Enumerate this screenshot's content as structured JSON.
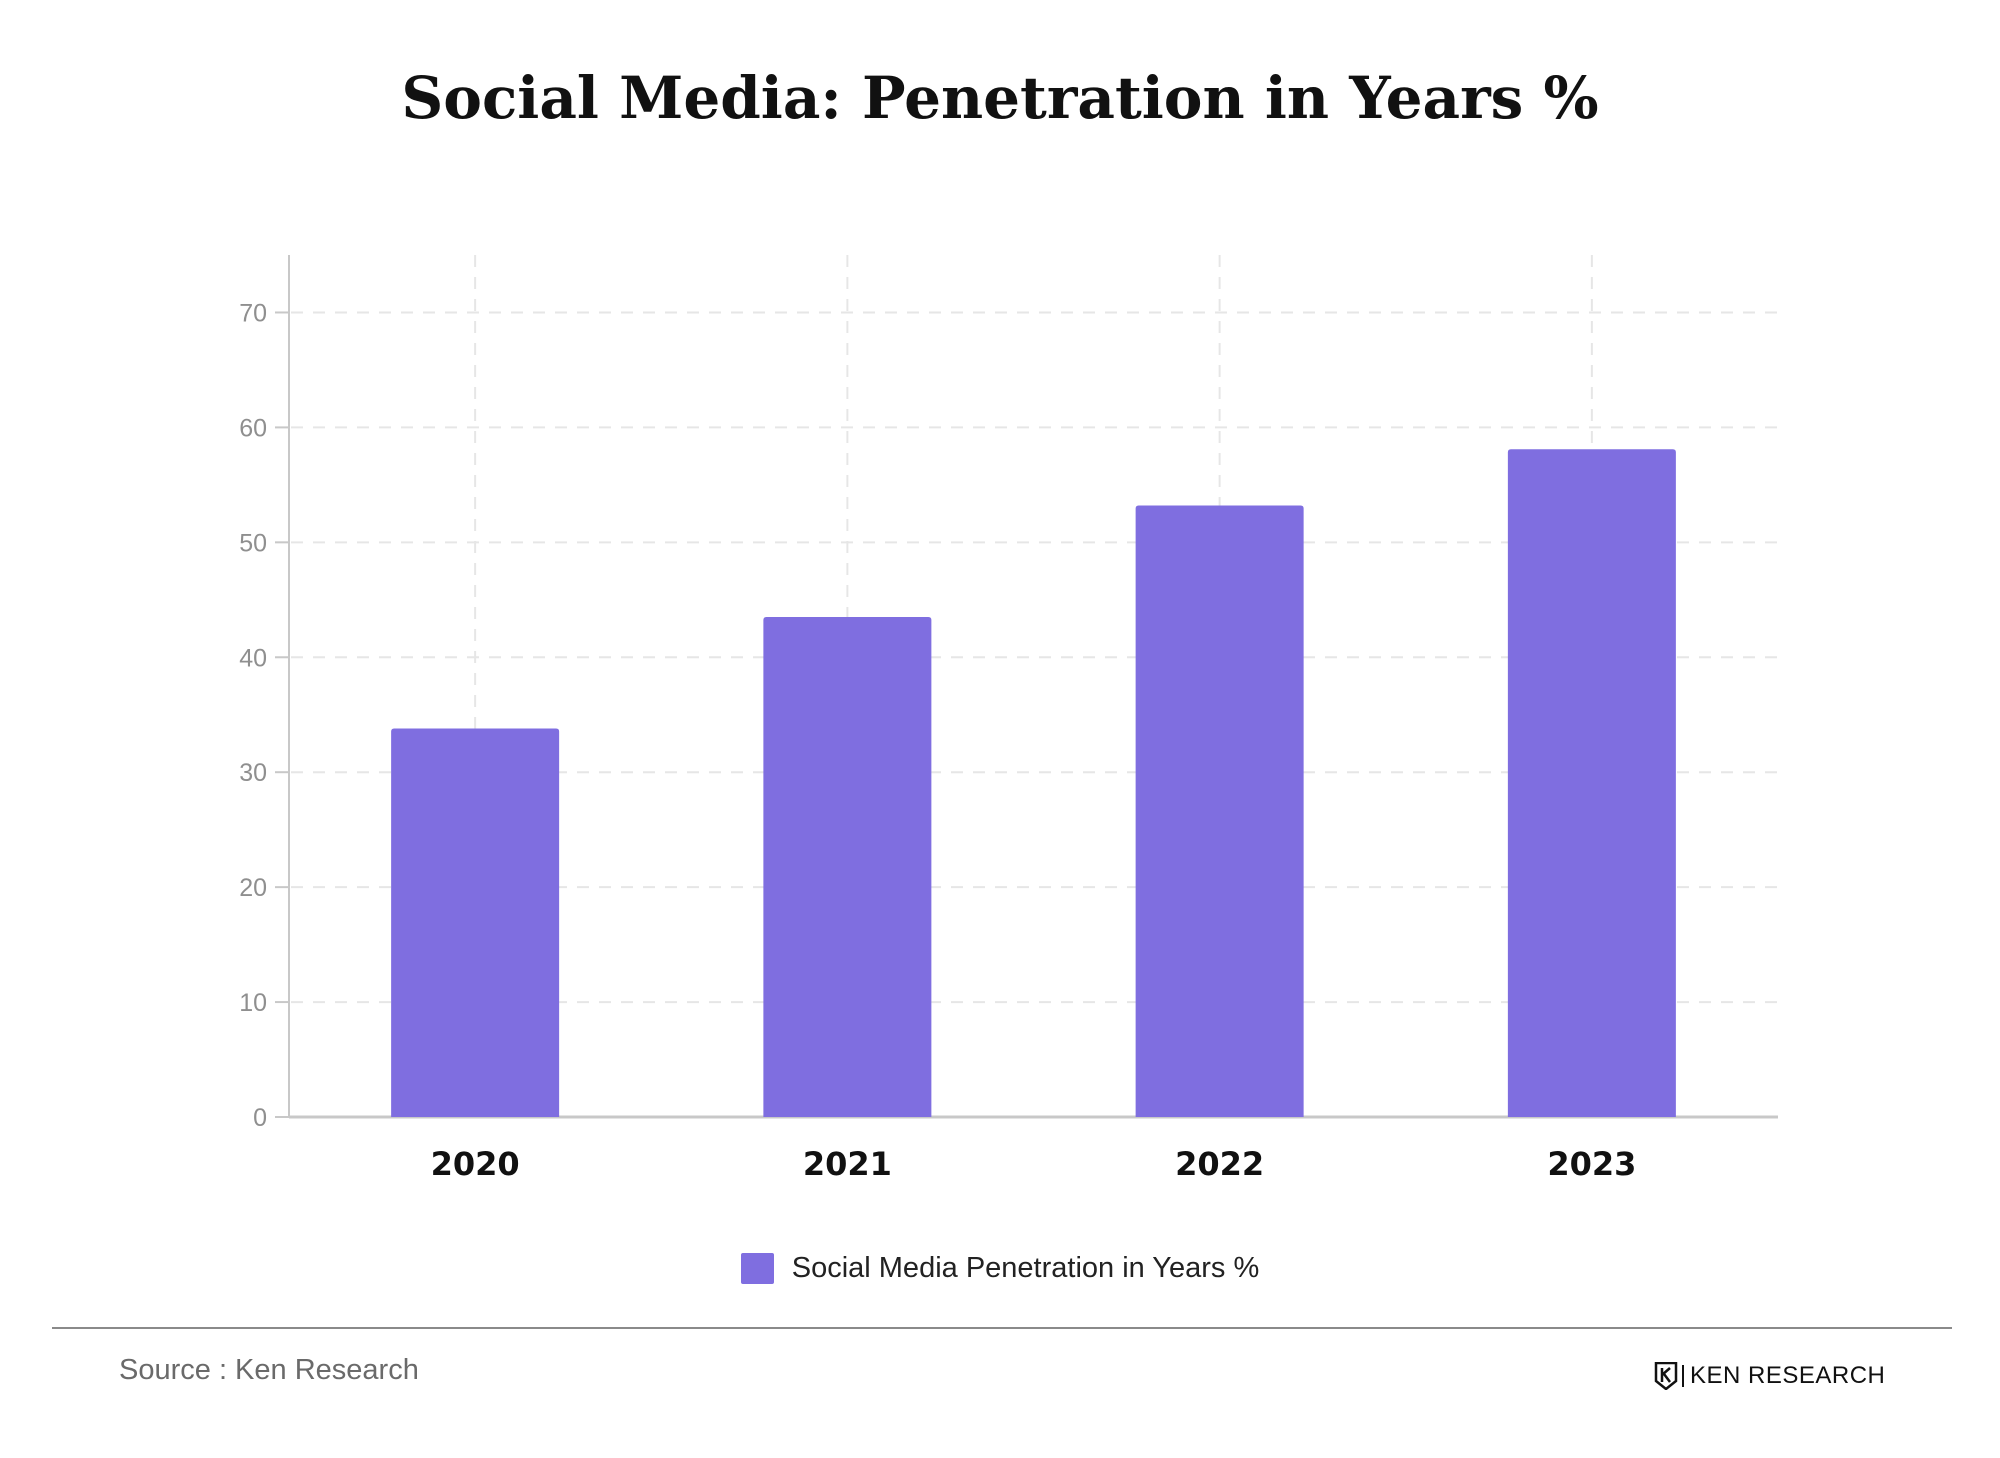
{
  "title": "Social Media: Penetration in Years %",
  "colors": {
    "bar": "#7f6ee0",
    "axis": "#c8c8c8",
    "grid": "#e6e6e6"
  },
  "chart_data": {
    "type": "bar",
    "title": "Social Media: Penetration in Years %",
    "categories": [
      "2020",
      "2021",
      "2022",
      "2023"
    ],
    "series": [
      {
        "name": "Social Media Penetration in Years %",
        "values": [
          33.8,
          43.5,
          53.2,
          58.1
        ]
      }
    ],
    "yticks": [
      "0",
      "10",
      "20",
      "30",
      "40",
      "50",
      "60",
      "70"
    ],
    "ylim": [
      0,
      75
    ],
    "grid": true,
    "legend_position": "bottom-center"
  },
  "legend": {
    "label": "Social Media Penetration in Years %"
  },
  "footer": {
    "source": "Source : Ken Research",
    "brand": "KEN RESEARCH"
  }
}
